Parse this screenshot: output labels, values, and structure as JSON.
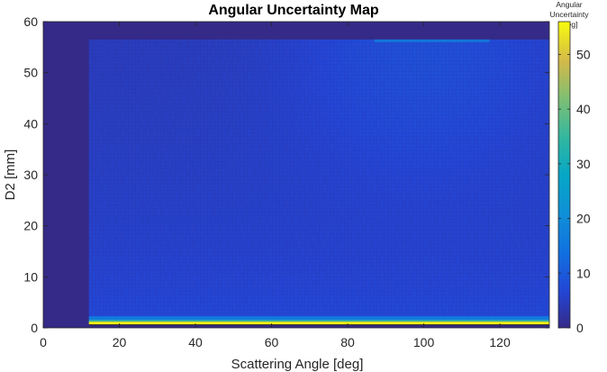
{
  "chart_data": {
    "type": "heatmap",
    "title": "Angular Uncertainty Map",
    "xlabel": "Scattering Angle [deg]",
    "ylabel": "D2 [mm]",
    "xlim": [
      0,
      133
    ],
    "ylim": [
      0,
      60
    ],
    "xticks": [
      "0",
      "20",
      "40",
      "60",
      "80",
      "100",
      "120"
    ],
    "yticks": [
      "0",
      "10",
      "20",
      "30",
      "40",
      "50",
      "60"
    ],
    "colorbar": {
      "label_lines": [
        "Angular",
        "Uncertainty",
        "[deg]"
      ],
      "ticks": [
        "0",
        "10",
        "20",
        "30",
        "40",
        "50"
      ],
      "range": [
        0,
        56
      ],
      "colormap": "parula"
    },
    "data_region": {
      "x_range": [
        12,
        133
      ],
      "y_range": [
        0.5,
        56.5
      ],
      "background_value": 0
    },
    "grid": false
  }
}
